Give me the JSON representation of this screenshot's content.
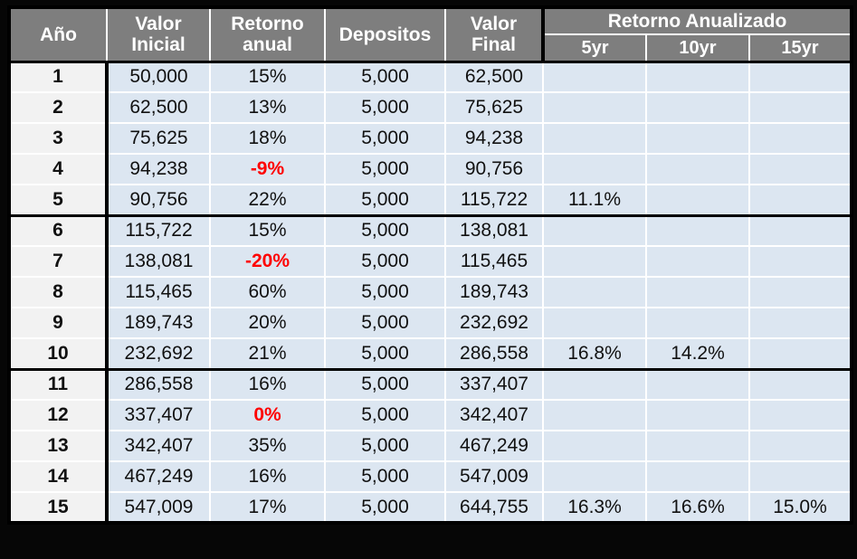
{
  "colors": {
    "page_bg": "#060606",
    "header_bg": "#7e7e7e",
    "header_text": "#ffffff",
    "row_bg": "#dce6f1",
    "year_col_bg": "#f2f2f2",
    "data_text": "#111111",
    "negative_return": "#fe0000",
    "grid_line": "#ffffff",
    "group_border": "#000000"
  },
  "chart_data": {
    "type": "table",
    "columns": [
      {
        "key": "year",
        "label": "Año"
      },
      {
        "key": "initial",
        "label": "Valor\nInicial"
      },
      {
        "key": "annual_return",
        "label": "Retorno\nanual"
      },
      {
        "key": "deposit",
        "label": "Depositos"
      },
      {
        "key": "final",
        "label": "Valor\nFinal"
      },
      {
        "key": "yr5",
        "label": "5yr"
      },
      {
        "key": "yr10",
        "label": "10yr"
      },
      {
        "key": "yr15",
        "label": "15yr"
      }
    ],
    "group_header": {
      "label": "Retorno Anualizado",
      "spans": [
        "5yr",
        "10yr",
        "15yr"
      ]
    },
    "rows": [
      {
        "year": "1",
        "initial": "50,000",
        "annual_return": "15%",
        "deposit": "5,000",
        "final": "62,500",
        "yr5": "",
        "yr10": "",
        "yr15": ""
      },
      {
        "year": "2",
        "initial": "62,500",
        "annual_return": "13%",
        "deposit": "5,000",
        "final": "75,625",
        "yr5": "",
        "yr10": "",
        "yr15": ""
      },
      {
        "year": "3",
        "initial": "75,625",
        "annual_return": "18%",
        "deposit": "5,000",
        "final": "94,238",
        "yr5": "",
        "yr10": "",
        "yr15": ""
      },
      {
        "year": "4",
        "initial": "94,238",
        "annual_return": "-9%",
        "deposit": "5,000",
        "final": "90,756",
        "yr5": "",
        "yr10": "",
        "yr15": ""
      },
      {
        "year": "5",
        "initial": "90,756",
        "annual_return": "22%",
        "deposit": "5,000",
        "final": "115,722",
        "yr5": "11.1%",
        "yr10": "",
        "yr15": ""
      },
      {
        "year": "6",
        "initial": "115,722",
        "annual_return": "15%",
        "deposit": "5,000",
        "final": "138,081",
        "yr5": "",
        "yr10": "",
        "yr15": ""
      },
      {
        "year": "7",
        "initial": "138,081",
        "annual_return": "-20%",
        "deposit": "5,000",
        "final": "115,465",
        "yr5": "",
        "yr10": "",
        "yr15": ""
      },
      {
        "year": "8",
        "initial": "115,465",
        "annual_return": "60%",
        "deposit": "5,000",
        "final": "189,743",
        "yr5": "",
        "yr10": "",
        "yr15": ""
      },
      {
        "year": "9",
        "initial": "189,743",
        "annual_return": "20%",
        "deposit": "5,000",
        "final": "232,692",
        "yr5": "",
        "yr10": "",
        "yr15": ""
      },
      {
        "year": "10",
        "initial": "232,692",
        "annual_return": "21%",
        "deposit": "5,000",
        "final": "286,558",
        "yr5": "16.8%",
        "yr10": "14.2%",
        "yr15": ""
      },
      {
        "year": "11",
        "initial": "286,558",
        "annual_return": "16%",
        "deposit": "5,000",
        "final": "337,407",
        "yr5": "",
        "yr10": "",
        "yr15": ""
      },
      {
        "year": "12",
        "initial": "337,407",
        "annual_return": "0%",
        "deposit": "5,000",
        "final": "342,407",
        "yr5": "",
        "yr10": "",
        "yr15": ""
      },
      {
        "year": "13",
        "initial": "342,407",
        "annual_return": "35%",
        "deposit": "5,000",
        "final": "467,249",
        "yr5": "",
        "yr10": "",
        "yr15": ""
      },
      {
        "year": "14",
        "initial": "467,249",
        "annual_return": "16%",
        "deposit": "5,000",
        "final": "547,009",
        "yr5": "",
        "yr10": "",
        "yr15": ""
      },
      {
        "year": "15",
        "initial": "547,009",
        "annual_return": "17%",
        "deposit": "5,000",
        "final": "644,755",
        "yr5": "16.3%",
        "yr10": "16.6%",
        "yr15": "15.0%"
      }
    ]
  }
}
